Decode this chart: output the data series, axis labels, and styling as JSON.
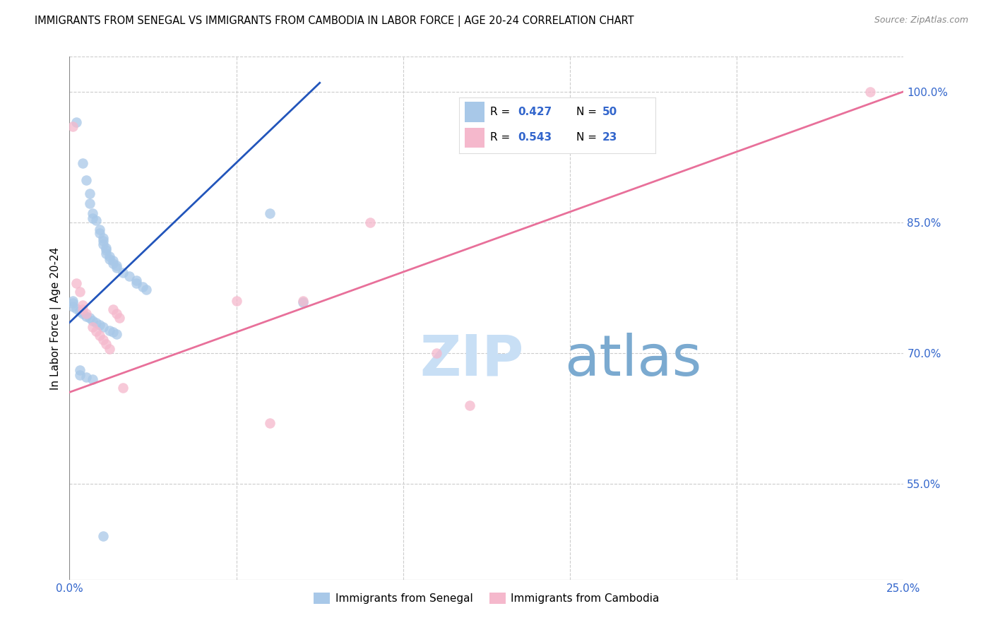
{
  "title": "IMMIGRANTS FROM SENEGAL VS IMMIGRANTS FROM CAMBODIA IN LABOR FORCE | AGE 20-24 CORRELATION CHART",
  "source": "Source: ZipAtlas.com",
  "ylabel": "In Labor Force | Age 20-24",
  "xlim": [
    0.0,
    0.25
  ],
  "ylim": [
    0.44,
    1.04
  ],
  "xticks": [
    0.0,
    0.05,
    0.1,
    0.15,
    0.2,
    0.25
  ],
  "xticklabels": [
    "0.0%",
    "",
    "",
    "",
    "",
    "25.0%"
  ],
  "yticks": [
    0.55,
    0.7,
    0.85,
    1.0
  ],
  "yticklabels": [
    "55.0%",
    "70.0%",
    "85.0%",
    "100.0%"
  ],
  "senegal_color": "#a8c8e8",
  "cambodia_color": "#f5b8cc",
  "senegal_line_color": "#2255bb",
  "cambodia_line_color": "#e8709a",
  "watermark_zip": "ZIP",
  "watermark_atlas": "atlas",
  "background": "#ffffff",
  "grid_color": "#cccccc",
  "senegal_x": [
    0.002,
    0.004,
    0.005,
    0.006,
    0.006,
    0.007,
    0.007,
    0.008,
    0.009,
    0.009,
    0.01,
    0.01,
    0.01,
    0.011,
    0.011,
    0.011,
    0.012,
    0.012,
    0.013,
    0.013,
    0.014,
    0.014,
    0.016,
    0.018,
    0.02,
    0.02,
    0.022,
    0.023,
    0.001,
    0.001,
    0.001,
    0.002,
    0.003,
    0.004,
    0.005,
    0.006,
    0.007,
    0.008,
    0.009,
    0.01,
    0.012,
    0.013,
    0.014,
    0.06,
    0.07,
    0.003,
    0.003,
    0.005,
    0.007,
    0.01
  ],
  "senegal_y": [
    0.965,
    0.918,
    0.898,
    0.883,
    0.872,
    0.86,
    0.855,
    0.852,
    0.842,
    0.838,
    0.832,
    0.829,
    0.825,
    0.821,
    0.818,
    0.814,
    0.811,
    0.808,
    0.806,
    0.803,
    0.8,
    0.798,
    0.792,
    0.788,
    0.783,
    0.78,
    0.776,
    0.773,
    0.76,
    0.757,
    0.753,
    0.751,
    0.748,
    0.745,
    0.742,
    0.74,
    0.737,
    0.735,
    0.732,
    0.73,
    0.726,
    0.724,
    0.722,
    0.86,
    0.758,
    0.68,
    0.675,
    0.672,
    0.67,
    0.49
  ],
  "cambodia_x": [
    0.001,
    0.002,
    0.003,
    0.004,
    0.004,
    0.005,
    0.007,
    0.008,
    0.009,
    0.01,
    0.011,
    0.012,
    0.013,
    0.014,
    0.015,
    0.016,
    0.05,
    0.06,
    0.07,
    0.09,
    0.11,
    0.12,
    0.24
  ],
  "cambodia_y": [
    0.96,
    0.78,
    0.77,
    0.755,
    0.75,
    0.745,
    0.73,
    0.725,
    0.72,
    0.715,
    0.71,
    0.705,
    0.75,
    0.745,
    0.74,
    0.66,
    0.76,
    0.62,
    0.76,
    0.85,
    0.7,
    0.64,
    1.0
  ],
  "senegal_trend_x0": 0.0,
  "senegal_trend_y0": 0.735,
  "senegal_trend_x1": 0.075,
  "senegal_trend_y1": 1.01,
  "cambodia_trend_x0": 0.0,
  "cambodia_trend_y0": 0.655,
  "cambodia_trend_x1": 0.25,
  "cambodia_trend_y1": 1.0,
  "legend_label1": "Immigrants from Senegal",
  "legend_label2": "Immigrants from Cambodia",
  "legend_r1": "0.427",
  "legend_n1": "50",
  "legend_r2": "0.543",
  "legend_n2": "23"
}
